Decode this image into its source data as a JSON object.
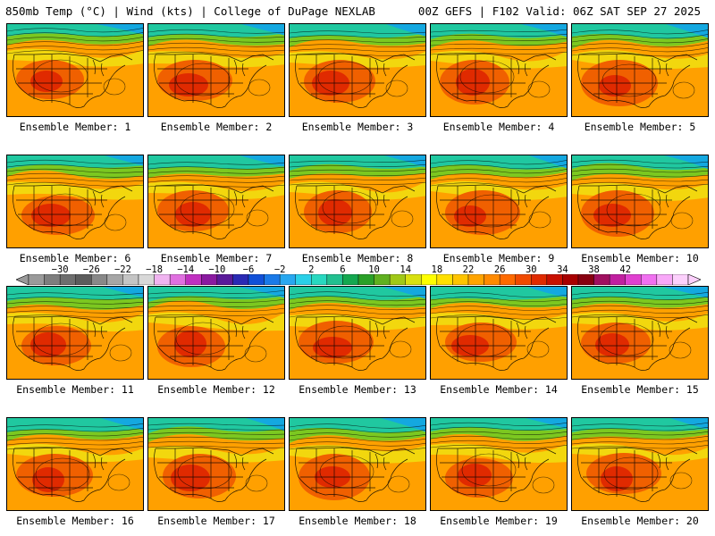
{
  "header": {
    "left_title": "850mb Temp (°C) | Wind (kts) | College of DuPage NEXLAB",
    "right_title": "00Z GEFS | F102 Valid: 06Z SAT SEP 27 2025"
  },
  "panels": [
    {
      "label": "Ensemble Member: 1"
    },
    {
      "label": "Ensemble Member: 2"
    },
    {
      "label": "Ensemble Member: 3"
    },
    {
      "label": "Ensemble Member: 4"
    },
    {
      "label": "Ensemble Member: 5"
    },
    {
      "label": "Ensemble Member: 6"
    },
    {
      "label": "Ensemble Member: 7"
    },
    {
      "label": "Ensemble Member: 8"
    },
    {
      "label": "Ensemble Member: 9"
    },
    {
      "label": "Ensemble Member: 10"
    },
    {
      "label": "Ensemble Member: 11"
    },
    {
      "label": "Ensemble Member: 12"
    },
    {
      "label": "Ensemble Member: 13"
    },
    {
      "label": "Ensemble Member: 14"
    },
    {
      "label": "Ensemble Member: 15"
    },
    {
      "label": "Ensemble Member: 16"
    },
    {
      "label": "Ensemble Member: 17"
    },
    {
      "label": "Ensemble Member: 18"
    },
    {
      "label": "Ensemble Member: 19"
    },
    {
      "label": "Ensemble Member: 20"
    }
  ],
  "colorbar": {
    "labels": [
      "−30",
      "−26",
      "−22",
      "−18",
      "−14",
      "−10",
      "−6",
      "−2",
      "2",
      "6",
      "10",
      "14",
      "18",
      "22",
      "26",
      "30",
      "34",
      "38",
      "42"
    ],
    "colors": [
      "#9a9a9a",
      "#7e7e7e",
      "#6e6e6e",
      "#5c5c5c",
      "#888888",
      "#a6a6a6",
      "#c4c4c4",
      "#d8d8d8",
      "#f0b4f0",
      "#e070e0",
      "#c030c0",
      "#8a1aa0",
      "#5a1a9a",
      "#2a2ab4",
      "#1050d8",
      "#1a7ae8",
      "#28a8f0",
      "#2ad0e8",
      "#28d8c0",
      "#22c090",
      "#14a850",
      "#2aa028",
      "#60b020",
      "#a0c818",
      "#d8e010",
      "#ffff00",
      "#ffe000",
      "#ffc400",
      "#ffa400",
      "#ff8a00",
      "#ff6a00",
      "#f04a00",
      "#e02a00",
      "#c81000",
      "#a80000",
      "#880010",
      "#a01060",
      "#c020a0",
      "#e040d0",
      "#f070f0",
      "#f8a8f8",
      "#fcd0fc"
    ],
    "field_colors": {
      "cold": "#14a8e0",
      "cool": "#20c8a0",
      "mild": "#7cc820",
      "warm": "#f0e010",
      "orange": "#ffa000",
      "hot": "#f06000",
      "hottest": "#e02a00"
    }
  }
}
